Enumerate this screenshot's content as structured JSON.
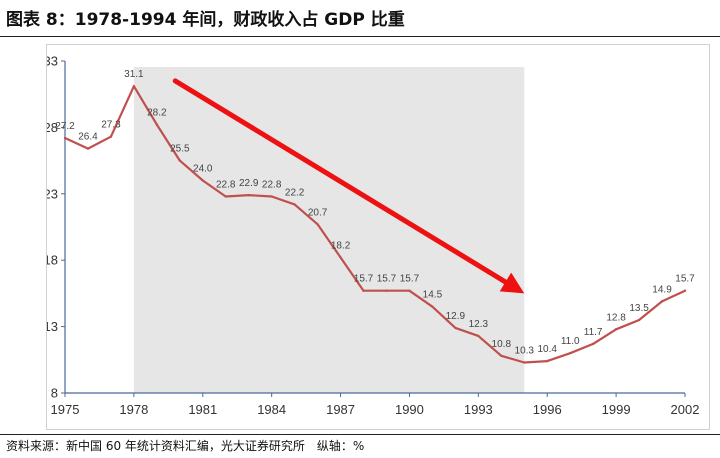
{
  "title": "图表 8：1978-1994 年间，财政收入占 GDP 比重",
  "source": "资料来源：新中国 60 年统计资料汇编，光大证券研究所　纵轴：%",
  "colors": {
    "line": "#c0504d",
    "arrow": "#ee1111",
    "shade": "#e6e6e6",
    "axis": "#4a6a99",
    "label": "#444444"
  },
  "chart_data": {
    "type": "line",
    "x": [
      1975,
      1976,
      1977,
      1978,
      1979,
      1980,
      1981,
      1982,
      1983,
      1984,
      1985,
      1986,
      1987,
      1988,
      1989,
      1990,
      1991,
      1992,
      1993,
      1994,
      1995,
      1996,
      1997,
      1998,
      1999,
      2000,
      2001,
      2002
    ],
    "values": [
      27.2,
      26.4,
      27.3,
      31.1,
      28.2,
      25.5,
      24.0,
      22.8,
      22.9,
      22.8,
      22.2,
      20.7,
      18.2,
      15.7,
      15.7,
      15.7,
      14.5,
      12.9,
      12.3,
      10.8,
      10.3,
      10.4,
      11.0,
      11.7,
      12.8,
      13.5,
      14.9,
      15.7
    ],
    "labels": [
      "27.2",
      "26.4",
      "27.3",
      "31.1",
      "28.2",
      "25.5",
      "24.0",
      "22.8",
      "22.9",
      "22.8",
      "22.2",
      "20.7",
      "18.2",
      "15.7",
      "15.7",
      "15.7",
      "14.5",
      "12.9",
      "12.3",
      "10.8",
      "10.3",
      "10.4",
      "11.0",
      "11.7",
      "12.8",
      "13.5",
      "14.9",
      "15.7"
    ],
    "ylim": [
      8,
      33
    ],
    "yticks": [
      "8",
      "13",
      "18",
      "23",
      "28",
      "33"
    ],
    "xlim": [
      1975,
      2002
    ],
    "xticks": [
      "1975",
      "1978",
      "1981",
      "1984",
      "1987",
      "1990",
      "1993",
      "1996",
      "1999",
      "2002"
    ],
    "shaded_range": [
      1978,
      1995
    ],
    "arrow": {
      "from": [
        1979.8,
        31.5
      ],
      "to": [
        1995.0,
        15.5
      ]
    },
    "grid": false,
    "legend": "none"
  }
}
